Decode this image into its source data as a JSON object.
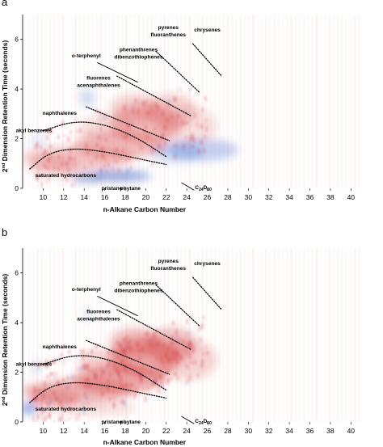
{
  "chart_data": [
    {
      "type": "heatmap",
      "panel_label": "a",
      "xlabel": "n-Alkane Carbon Number",
      "ylabel": "2nd Dimension Retention Time (seconds)",
      "ylabel_parts": {
        "pre": "2",
        "sup": "nd",
        "post": " Dimension Retention Time (seconds)"
      },
      "xlim": [
        8,
        41
      ],
      "ylim": [
        0,
        7
      ],
      "x_ticks": [
        10,
        12,
        14,
        16,
        18,
        20,
        22,
        24,
        26,
        28,
        30,
        32,
        34,
        36,
        38,
        40
      ],
      "y_ticks": [
        0,
        2,
        4,
        6
      ],
      "colors": {
        "positive": "#d03030",
        "negative": "#2a5fd0",
        "zero": "#ffffff"
      },
      "annotations": [
        {
          "text": "pyrenes",
          "x": 22.2,
          "y": 6.42
        },
        {
          "text": "fluoranthenes",
          "x": 22.2,
          "y": 6.12
        },
        {
          "text": "chrysenes",
          "x": 26.0,
          "y": 6.32
        },
        {
          "text": "o-terphenyl",
          "x": 14.2,
          "y": 5.28
        },
        {
          "text": "phenanthrenes",
          "x": 19.3,
          "y": 5.52
        },
        {
          "text": "dibenzothiophenes",
          "x": 19.3,
          "y": 5.22
        },
        {
          "text": "fluorenes",
          "x": 15.4,
          "y": 4.38
        },
        {
          "text": "acenaphthalenes",
          "x": 15.4,
          "y": 4.08
        },
        {
          "text": "naphthalenes",
          "x": 11.6,
          "y": 2.96
        },
        {
          "text": "akyl benzenes",
          "x": 9.1,
          "y": 2.26
        },
        {
          "text": "saturated hydrocarbons",
          "x": 12.2,
          "y": 0.46
        },
        {
          "text": "pristane",
          "x": 16.7,
          "y": -0.06
        },
        {
          "text": "phytane",
          "x": 18.5,
          "y": -0.06
        }
      ],
      "c_label": {
        "main": "C",
        "sub1": "24",
        "mid": "D",
        "sub2": "50",
        "x": 24.8,
        "y": -0.04
      },
      "groups": {
        "naphthalenes": {
          "x": [
            10,
            13,
            16,
            19,
            22
          ],
          "y": [
            2.32,
            2.72,
            2.58,
            2.08,
            1.28
          ]
        },
        "saturated_hydrocarbons": {
          "x": [
            8.7,
            10.5,
            13,
            16,
            19,
            22
          ],
          "y": [
            0.78,
            1.42,
            1.62,
            1.48,
            1.22,
            0.96
          ]
        },
        "fluorenes_acenaphthalenes": {
          "x": [
            14.2,
            22.3
          ],
          "y": [
            3.28,
            1.92
          ]
        },
        "phenanthrenes_dibenzothiophenes": {
          "x": [
            17.2,
            24.4
          ],
          "y": [
            4.52,
            2.92
          ]
        },
        "pyrenes_fluoranthenes": {
          "x": [
            21.0,
            25.2
          ],
          "y": [
            5.52,
            3.88
          ]
        },
        "chrysenes": {
          "x": [
            24.6,
            27.4
          ],
          "y": [
            5.82,
            4.52
          ]
        },
        "o_terphenyl": {
          "x": [
            15.3,
            19.2
          ],
          "y": [
            5.06,
            4.28
          ]
        },
        "C24D50": {
          "x": [
            23.5,
            24.7
          ],
          "y": [
            0.22,
            -0.07
          ]
        }
      }
    },
    {
      "type": "heatmap",
      "panel_label": "b",
      "xlabel": "n-Alkane Carbon Number",
      "ylabel": "2nd Dimension Retention Time (seconds)",
      "ylabel_parts": {
        "pre": "2",
        "sup": "nd",
        "post": " Dimension Retention Time (seconds)"
      },
      "xlim": [
        8,
        41
      ],
      "ylim": [
        0,
        7
      ],
      "x_ticks": [
        10,
        12,
        14,
        16,
        18,
        20,
        22,
        24,
        26,
        28,
        30,
        32,
        34,
        36,
        38,
        40
      ],
      "y_ticks": [
        0,
        2,
        4,
        6
      ],
      "colors": {
        "positive": "#d03030",
        "negative": "#2a5fd0",
        "zero": "#ffffff"
      },
      "annotations": [
        {
          "text": "pyrenes",
          "x": 22.2,
          "y": 6.42
        },
        {
          "text": "fluoranthenes",
          "x": 22.2,
          "y": 6.12
        },
        {
          "text": "chrysenes",
          "x": 26.0,
          "y": 6.32
        },
        {
          "text": "o-terphenyl",
          "x": 14.2,
          "y": 5.28
        },
        {
          "text": "phenanthrenes",
          "x": 19.3,
          "y": 5.52
        },
        {
          "text": "dibenzothiophenes",
          "x": 19.3,
          "y": 5.22
        },
        {
          "text": "fluorenes",
          "x": 15.4,
          "y": 4.38
        },
        {
          "text": "acenaphthalenes",
          "x": 15.4,
          "y": 4.08
        },
        {
          "text": "naphthalenes",
          "x": 11.6,
          "y": 2.96
        },
        {
          "text": "akyl benzenes",
          "x": 9.1,
          "y": 2.26
        },
        {
          "text": "saturated hydrocarbons",
          "x": 12.2,
          "y": 0.46
        },
        {
          "text": "pristane",
          "x": 16.7,
          "y": -0.06
        },
        {
          "text": "phytane",
          "x": 18.5,
          "y": -0.06
        }
      ],
      "c_label": {
        "main": "C",
        "sub1": "24",
        "mid": "D",
        "sub2": "50",
        "x": 24.8,
        "y": -0.04
      },
      "groups": {
        "naphthalenes": {
          "x": [
            10,
            13,
            16,
            19,
            22
          ],
          "y": [
            2.32,
            2.72,
            2.58,
            2.08,
            1.28
          ]
        },
        "saturated_hydrocarbons": {
          "x": [
            8.7,
            10.5,
            13,
            16,
            19,
            22
          ],
          "y": [
            0.78,
            1.42,
            1.62,
            1.48,
            1.22,
            0.96
          ]
        },
        "fluorenes_acenaphthalenes": {
          "x": [
            14.2,
            22.3
          ],
          "y": [
            3.28,
            1.92
          ]
        },
        "phenanthrenes_dibenzothiophenes": {
          "x": [
            17.2,
            24.4
          ],
          "y": [
            4.52,
            2.92
          ]
        },
        "pyrenes_fluoranthenes": {
          "x": [
            21.0,
            25.2
          ],
          "y": [
            5.52,
            3.88
          ]
        },
        "chrysenes": {
          "x": [
            24.6,
            27.4
          ],
          "y": [
            5.82,
            4.52
          ]
        },
        "o_terphenyl": {
          "x": [
            15.3,
            19.2
          ],
          "y": [
            5.06,
            4.28
          ]
        },
        "C24D50": {
          "x": [
            23.5,
            24.7
          ],
          "y": [
            0.22,
            -0.07
          ]
        }
      }
    }
  ]
}
